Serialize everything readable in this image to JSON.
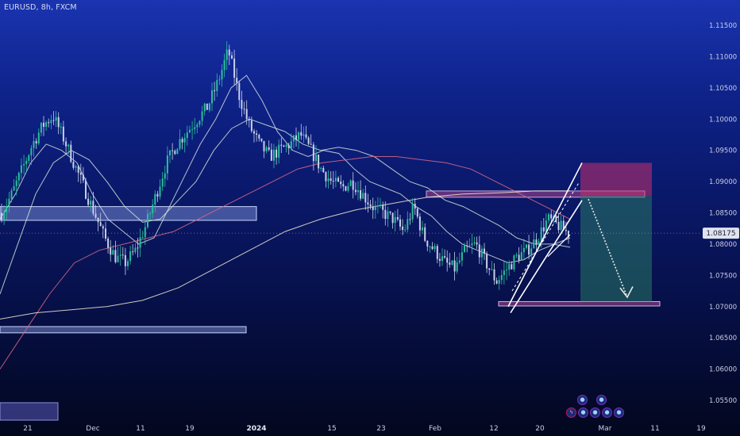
{
  "header": {
    "symbol": "EURUSD, 8h, FXCM"
  },
  "current_price": "1.08175",
  "chart_data": {
    "type": "candlestick",
    "symbol": "EURUSD",
    "timeframe": "8h",
    "source": "FXCM",
    "ylim": [
      1.05,
      1.1185
    ],
    "y_ticks": [
      "1.11500",
      "1.11000",
      "1.10500",
      "1.10000",
      "1.09500",
      "1.09000",
      "1.08500",
      "1.08000",
      "1.07500",
      "1.07000",
      "1.06500",
      "1.06000",
      "1.05500"
    ],
    "x_ticks": [
      {
        "label": "21",
        "bold": false
      },
      {
        "label": "Dec",
        "bold": false
      },
      {
        "label": "11",
        "bold": false
      },
      {
        "label": "19",
        "bold": false
      },
      {
        "label": "2024",
        "bold": true
      },
      {
        "label": "15",
        "bold": false
      },
      {
        "label": "23",
        "bold": false
      },
      {
        "label": "Feb",
        "bold": false
      },
      {
        "label": "12",
        "bold": false
      },
      {
        "label": "20",
        "bold": false
      },
      {
        "label": "Mar",
        "bold": false
      },
      {
        "label": "11",
        "bold": false
      },
      {
        "label": "19",
        "bold": false
      }
    ],
    "close_path": [
      1.085,
      1.088,
      1.092,
      1.096,
      1.099,
      1.1005,
      1.097,
      1.093,
      1.089,
      1.085,
      1.081,
      1.078,
      1.077,
      1.079,
      1.083,
      1.088,
      1.093,
      1.096,
      1.098,
      1.1,
      1.102,
      1.106,
      1.111,
      1.104,
      1.099,
      1.096,
      1.094,
      1.095,
      1.096,
      1.0975,
      1.095,
      1.092,
      1.09,
      1.089,
      1.09,
      1.088,
      1.086,
      1.085,
      1.084,
      1.082,
      1.086,
      1.081,
      1.079,
      1.077,
      1.076,
      1.079,
      1.08,
      1.077,
      1.074,
      1.076,
      1.078,
      1.079,
      1.081,
      1.084,
      1.083,
      1.0817
    ],
    "moving_averages": [
      {
        "color": "#d7dfe0",
        "values": [
          1.084,
          1.088,
          1.093,
          1.096,
          1.095,
          1.093,
          1.088,
          1.084,
          1.082,
          1.08,
          1.081,
          1.086,
          1.091,
          1.096,
          1.1,
          1.105,
          1.107,
          1.103,
          1.098,
          1.095,
          1.094,
          1.095,
          1.0945,
          1.092,
          1.09,
          1.089,
          1.088,
          1.086,
          1.0845,
          1.082,
          1.08,
          1.079,
          1.078,
          1.077,
          1.0775,
          1.079,
          1.08,
          1.081
        ]
      },
      {
        "color": "#cfe8d8",
        "values": [
          1.072,
          1.08,
          1.088,
          1.093,
          1.095,
          1.0935,
          1.09,
          1.086,
          1.0835,
          1.084,
          1.087,
          1.09,
          1.095,
          1.0985,
          1.1,
          1.099,
          1.098,
          1.096,
          1.095,
          1.0955,
          1.095,
          1.094,
          1.092,
          1.09,
          1.089,
          1.087,
          1.086,
          1.0845,
          1.083,
          1.081,
          1.08,
          1.08,
          1.0795
        ]
      },
      {
        "color": "#d96a86",
        "values": [
          1.06,
          1.066,
          1.072,
          1.077,
          1.079,
          1.08,
          1.081,
          1.082,
          1.084,
          1.086,
          1.088,
          1.09,
          1.092,
          1.093,
          1.0935,
          1.094,
          1.094,
          1.0935,
          1.093,
          1.092,
          1.09,
          1.088,
          1.086,
          1.084
        ]
      },
      {
        "color": "#f2ecd6",
        "values": [
          1.068,
          1.069,
          1.0695,
          1.07,
          1.071,
          1.073,
          1.076,
          1.079,
          1.082,
          1.084,
          1.0855,
          1.0865,
          1.0875,
          1.088,
          1.0882,
          1.0885,
          1.0885
        ]
      }
    ],
    "zones": [
      {
        "name": "supply-zone-upper",
        "y1": 1.0885,
        "y2": 1.0875
      },
      {
        "name": "demand-zone-left",
        "y1": 1.086,
        "y2": 1.0838
      },
      {
        "name": "lower-zone-left",
        "y1": 1.0668,
        "y2": 1.0658
      },
      {
        "name": "target-zone",
        "y1": 1.0708,
        "y2": 1.0701
      }
    ],
    "short_position": {
      "entry": 1.0877,
      "stop": 1.093,
      "target": 1.0708
    },
    "channel": {
      "lower_start": 1.07,
      "lower_end": 1.087,
      "upper_start": 1.076,
      "upper_end": 1.093
    }
  }
}
